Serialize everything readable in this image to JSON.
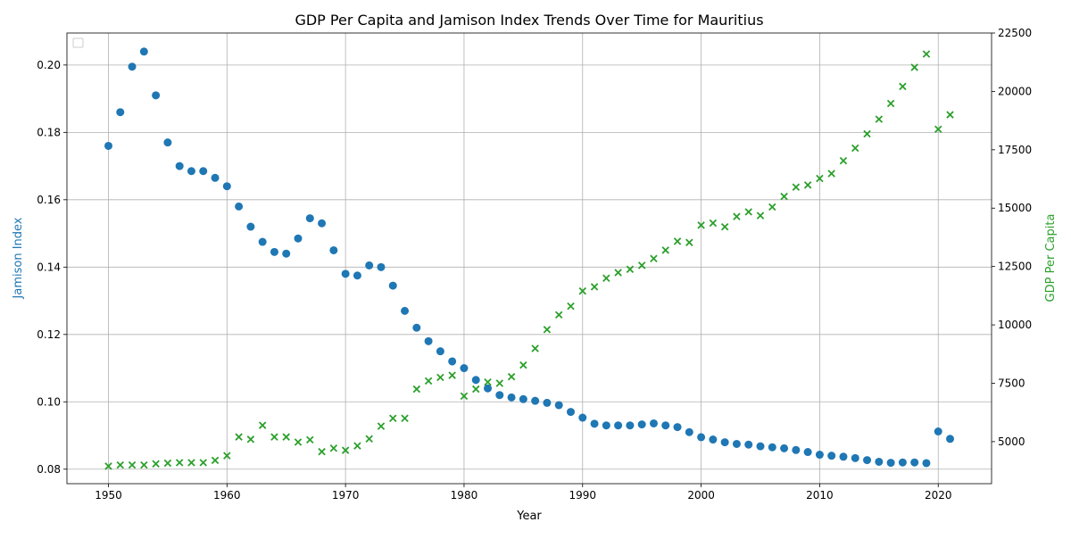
{
  "chart_data": {
    "type": "scatter",
    "title": "GDP Per Capita and Jamison Index Trends Over Time for Mauritius",
    "xlabel": "Year",
    "ylabel_left": "Jamison Index",
    "ylabel_right": "GDP Per Capita",
    "xlim": [
      1946.5,
      2024.5
    ],
    "ylim_left": [
      0.0757,
      0.2095
    ],
    "ylim_right": [
      3200,
      22500
    ],
    "x_ticks": [
      1950,
      1960,
      1970,
      1980,
      1990,
      2000,
      2010,
      2020
    ],
    "y_ticks_left": [
      0.08,
      0.1,
      0.12,
      0.14,
      0.16,
      0.18,
      0.2
    ],
    "y_ticks_left_labels": [
      "0.08",
      "0.10",
      "0.12",
      "0.14",
      "0.16",
      "0.18",
      "0.20"
    ],
    "y_ticks_right": [
      5000,
      7500,
      10000,
      12500,
      15000,
      17500,
      20000,
      22500
    ],
    "grid": true,
    "legend_placement": "top-left",
    "colors": {
      "jamison": "#1f77b4",
      "gdp": "#2ca02c"
    },
    "series": [
      {
        "axis": "left",
        "marker": "circle",
        "x": [
          1950,
          1951,
          1952,
          1953,
          1954,
          1955,
          1956,
          1957,
          1958,
          1959,
          1960,
          1961,
          1962,
          1963,
          1964,
          1965,
          1966,
          1967,
          1968,
          1969,
          1970,
          1971,
          1972,
          1973,
          1974,
          1975,
          1976,
          1977,
          1978,
          1979,
          1980,
          1981,
          1982,
          1983,
          1984,
          1985,
          1986,
          1987,
          1988,
          1989,
          1990,
          1991,
          1992,
          1993,
          1994,
          1995,
          1996,
          1997,
          1998,
          1999,
          2000,
          2001,
          2002,
          2003,
          2004,
          2005,
          2006,
          2007,
          2008,
          2009,
          2010,
          2011,
          2012,
          2013,
          2014,
          2015,
          2016,
          2017,
          2018,
          2019,
          2020,
          2021
        ],
        "values": [
          0.176,
          0.186,
          0.1995,
          0.204,
          0.191,
          0.177,
          0.17,
          0.1685,
          0.1685,
          0.1665,
          0.164,
          0.158,
          0.152,
          0.1475,
          0.1445,
          0.144,
          0.1485,
          0.1545,
          0.153,
          0.145,
          0.138,
          0.1375,
          0.1405,
          0.14,
          0.1345,
          0.127,
          0.122,
          0.118,
          0.115,
          0.112,
          0.11,
          0.1065,
          0.104,
          0.102,
          0.1013,
          0.1008,
          0.1003,
          0.0997,
          0.099,
          0.097,
          0.0953,
          0.0935,
          0.093,
          0.093,
          0.093,
          0.0933,
          0.0936,
          0.093,
          0.0925,
          0.091,
          0.0895,
          0.0888,
          0.088,
          0.0875,
          0.0873,
          0.0868,
          0.0865,
          0.0862,
          0.0857,
          0.0851,
          0.0843,
          0.084,
          0.0837,
          0.0833,
          0.0827,
          0.0822,
          0.0819,
          0.082,
          0.082,
          0.0818,
          0.0912,
          0.089
        ]
      },
      {
        "axis": "right",
        "marker": "x",
        "x": [
          1950,
          1951,
          1952,
          1953,
          1954,
          1955,
          1956,
          1957,
          1958,
          1959,
          1960,
          1961,
          1962,
          1963,
          1964,
          1965,
          1966,
          1967,
          1968,
          1969,
          1970,
          1971,
          1972,
          1973,
          1974,
          1975,
          1976,
          1977,
          1978,
          1979,
          1980,
          1981,
          1982,
          1983,
          1984,
          1985,
          1986,
          1987,
          1988,
          1989,
          1990,
          1991,
          1992,
          1993,
          1994,
          1995,
          1996,
          1997,
          1998,
          1999,
          2000,
          2001,
          2002,
          2003,
          2004,
          2005,
          2006,
          2007,
          2008,
          2009,
          2010,
          2011,
          2012,
          2013,
          2014,
          2015,
          2016,
          2017,
          2018,
          2019,
          2020,
          2021
        ],
        "values": [
          3950,
          4000,
          4000,
          4000,
          4050,
          4080,
          4100,
          4100,
          4100,
          4200,
          4400,
          5200,
          5100,
          5700,
          5200,
          5200,
          4980,
          5080,
          4570,
          4720,
          4630,
          4820,
          5120,
          5660,
          6000,
          6000,
          7250,
          7600,
          7750,
          7840,
          6950,
          7250,
          7550,
          7500,
          7780,
          8280,
          8990,
          9800,
          10430,
          10800,
          11450,
          11630,
          12000,
          12240,
          12380,
          12550,
          12840,
          13200,
          13580,
          13530,
          14270,
          14360,
          14200,
          14640,
          14840,
          14680,
          15050,
          15500,
          15900,
          15990,
          16270,
          16480,
          17030,
          17570,
          18180,
          18810,
          19480,
          20210,
          21030,
          21600,
          18380,
          19000
        ]
      }
    ]
  }
}
